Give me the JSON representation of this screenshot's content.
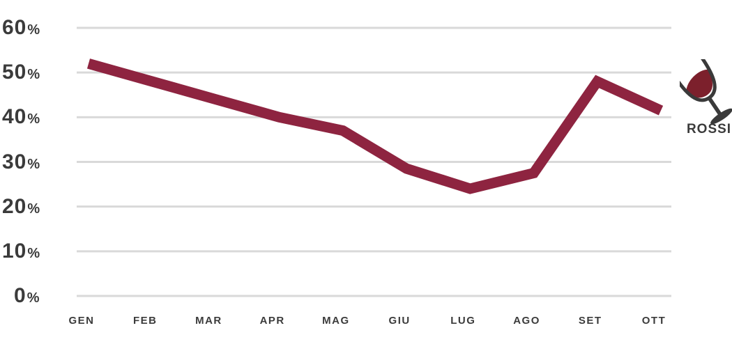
{
  "chart_data": {
    "type": "line",
    "categories": [
      "GEN",
      "FEB",
      "MAR",
      "APR",
      "MAG",
      "GIU",
      "LUG",
      "AGO",
      "SET",
      "OTT"
    ],
    "series": [
      {
        "name": "ROSSI",
        "color": "#8e2440",
        "values": [
          52,
          48,
          44,
          40,
          37,
          28.5,
          24,
          27.5,
          48,
          41.5
        ]
      }
    ],
    "title": "",
    "xlabel": "",
    "ylabel": "",
    "ylim": [
      0,
      60
    ],
    "y_ticks": [
      60,
      50,
      40,
      30,
      20,
      10,
      0
    ],
    "percent_suffix": "%",
    "grid": "horizontal",
    "legend_position": "right",
    "legend_icon": "wine-glass-icon"
  },
  "colors": {
    "series_line": "#8e2440",
    "wine_fill": "#7c202c",
    "glass_outline": "#3a3a3a",
    "gridline": "#d9d9d9",
    "axis_text": "#3b3b3b",
    "background": "#ffffff"
  }
}
